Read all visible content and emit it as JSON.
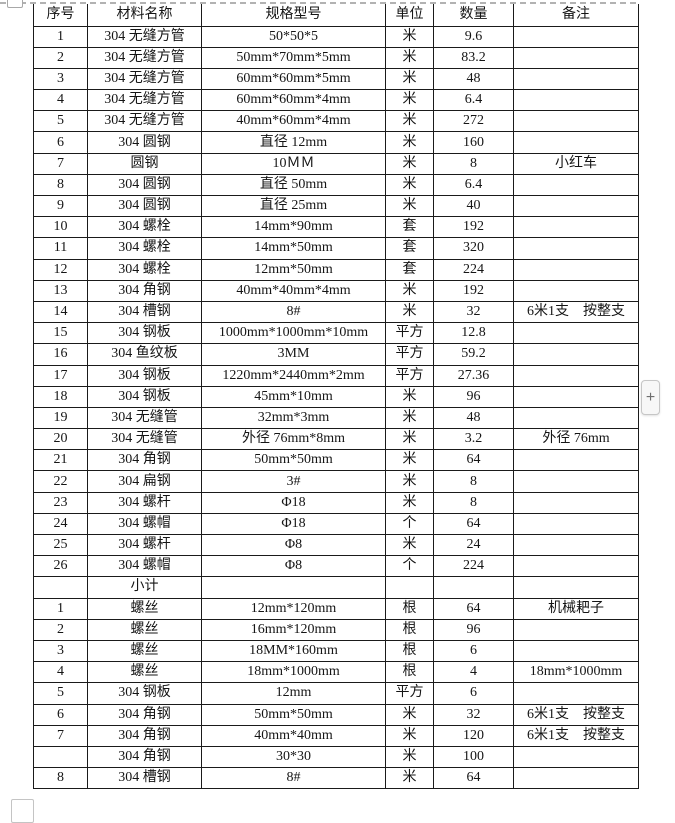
{
  "colors": {
    "table_border": "#1a1a1a",
    "text": "#151515",
    "boundary_dash": "#b2b2b2",
    "add_button_bg": "#f7f7f7",
    "add_button_border": "#c6c6c6"
  },
  "widgets": {
    "add_button_label": "+"
  },
  "table": {
    "headers": [
      "序号",
      "材料名称",
      "规格型号",
      "单位",
      "数量",
      "备注"
    ],
    "col_keys": [
      "no",
      "name",
      "spec",
      "unit",
      "qty",
      "note"
    ],
    "rows": [
      [
        "1",
        "304 无缝方管",
        "50*50*5",
        "米",
        "9.6",
        ""
      ],
      [
        "2",
        "304 无缝方管",
        "50mm*70mm*5mm",
        "米",
        "83.2",
        ""
      ],
      [
        "3",
        "304 无缝方管",
        "60mm*60mm*5mm",
        "米",
        "48",
        ""
      ],
      [
        "4",
        "304 无缝方管",
        "60mm*60mm*4mm",
        "米",
        "6.4",
        ""
      ],
      [
        "5",
        "304 无缝方管",
        "40mm*60mm*4mm",
        "米",
        "272",
        ""
      ],
      [
        "6",
        "304 圆钢",
        "直径 12mm",
        "米",
        "160",
        ""
      ],
      [
        "7",
        "圆钢",
        "10ＭＭ",
        "米",
        "8",
        "小红车"
      ],
      [
        "8",
        "304 圆钢",
        "直径 50mm",
        "米",
        "6.4",
        ""
      ],
      [
        "9",
        "304 圆钢",
        "直径 25mm",
        "米",
        "40",
        ""
      ],
      [
        "10",
        "304 螺栓",
        "14mm*90mm",
        "套",
        "192",
        ""
      ],
      [
        "11",
        "304 螺栓",
        "14mm*50mm",
        "套",
        "320",
        ""
      ],
      [
        "12",
        "304 螺栓",
        "12mm*50mm",
        "套",
        "224",
        ""
      ],
      [
        "13",
        "304 角钢",
        "40mm*40mm*4mm",
        "米",
        "192",
        ""
      ],
      [
        "14",
        "304 槽钢",
        "8#",
        "米",
        "32",
        "6米1支　按整支"
      ],
      [
        "15",
        "304 钢板",
        "1000mm*1000mm*10mm",
        "平方",
        "12.8",
        ""
      ],
      [
        "16",
        "304 鱼纹板",
        "3MM",
        "平方",
        "59.2",
        ""
      ],
      [
        "17",
        "304 钢板",
        "1220mm*2440mm*2mm",
        "平方",
        "27.36",
        ""
      ],
      [
        "18",
        "304 钢板",
        "45mm*10mm",
        "米",
        "96",
        ""
      ],
      [
        "19",
        "304 无缝管",
        "32mm*3mm",
        "米",
        "48",
        ""
      ],
      [
        "20",
        "304 无缝管",
        "外径 76mm*8mm",
        "米",
        "3.2",
        "外径 76mm"
      ],
      [
        "21",
        "304 角钢",
        "50mm*50mm",
        "米",
        "64",
        ""
      ],
      [
        "22",
        "304 扁钢",
        "3#",
        "米",
        "8",
        ""
      ],
      [
        "23",
        "304 螺杆",
        "Φ18",
        "米",
        "8",
        ""
      ],
      [
        "24",
        "304 螺帽",
        "Φ18",
        "个",
        "64",
        ""
      ],
      [
        "25",
        "304 螺杆",
        "Φ8",
        "米",
        "24",
        ""
      ],
      [
        "26",
        "304 螺帽",
        "Φ8",
        "个",
        "224",
        ""
      ],
      [
        "",
        "小计",
        "",
        "",
        "",
        ""
      ],
      [
        "1",
        "螺丝",
        "12mm*120mm",
        "根",
        "64",
        "机械耙子"
      ],
      [
        "2",
        "螺丝",
        "16mm*120mm",
        "根",
        "96",
        ""
      ],
      [
        "3",
        "螺丝",
        "18MM*160mm",
        "根",
        "6",
        ""
      ],
      [
        "4",
        "螺丝",
        "18mm*1000mm",
        "根",
        "4",
        "18mm*1000mm"
      ],
      [
        "5",
        "304 钢板",
        "12mm",
        "平方",
        "6",
        ""
      ],
      [
        "6",
        "304 角钢",
        "50mm*50mm",
        "米",
        "32",
        "6米1支　按整支"
      ],
      [
        "7",
        "304 角钢",
        "40mm*40mm",
        "米",
        "120",
        "6米1支　按整支"
      ],
      [
        "",
        "304 角钢",
        "30*30",
        "米",
        "100",
        ""
      ],
      [
        "8",
        "304 槽钢",
        "8#",
        "米",
        "64",
        ""
      ]
    ]
  }
}
